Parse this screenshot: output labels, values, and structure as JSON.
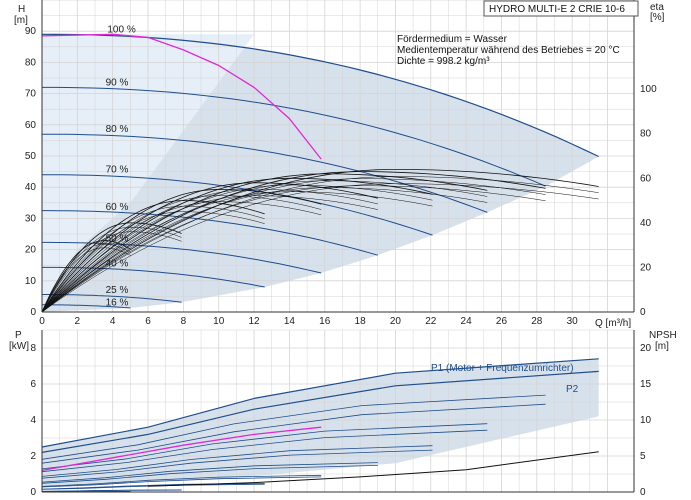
{
  "chart_data": [
    {
      "type": "line",
      "panel": "head",
      "title": "HYDRO MULTI-E 2 CRIE 10-6",
      "notes": [
        "Fördermedium = Wasser",
        "Medientemperatur während des Betriebes = 20 °C",
        "Dichte = 998.2 kg/m³"
      ],
      "xlabel": "Q [m³/h]",
      "ylabel_left": "H",
      "ylabel_left_unit": "[m]",
      "ylabel_right": "eta",
      "ylabel_right_unit": "[%]",
      "xlim": [
        0,
        33.5
      ],
      "ylim_left": [
        0,
        100
      ],
      "ylim_right": [
        0,
        140
      ],
      "x_ticks": [
        0,
        2,
        4,
        6,
        8,
        10,
        12,
        14,
        16,
        18,
        20,
        22,
        24,
        26,
        28,
        30
      ],
      "y_ticks_left": [
        0,
        10,
        20,
        30,
        40,
        50,
        60,
        70,
        80,
        90
      ],
      "y_ticks_right": [
        0,
        20,
        40,
        60,
        80,
        100
      ],
      "grid": true,
      "curve_labels": [
        {
          "text": "100 %",
          "x": 3.7,
          "y": 89
        },
        {
          "text": "90 %",
          "x": 3.6,
          "y": 72
        },
        {
          "text": "80 %",
          "x": 3.6,
          "y": 57
        },
        {
          "text": "70 %",
          "x": 3.6,
          "y": 44
        },
        {
          "text": "60 %",
          "x": 3.6,
          "y": 32
        },
        {
          "text": "50 %",
          "x": 3.6,
          "y": 22
        },
        {
          "text": "40 %",
          "x": 3.6,
          "y": 14
        },
        {
          "text": "25 %",
          "x": 3.6,
          "y": 5.5
        },
        {
          "text": "16 %",
          "x": 3.6,
          "y": 1.5
        }
      ],
      "pump_curves": [
        {
          "speed": "100 %",
          "shutoff_head": 89,
          "q_max": 31.5
        },
        {
          "speed": "90 %",
          "shutoff_head": 72,
          "q_max": 28.5
        },
        {
          "speed": "80 %",
          "shutoff_head": 57,
          "q_max": 25.2
        },
        {
          "speed": "70 %",
          "shutoff_head": 44,
          "q_max": 22.1
        },
        {
          "speed": "60 %",
          "shutoff_head": 32.5,
          "q_max": 19
        },
        {
          "speed": "50 %",
          "shutoff_head": 22.3,
          "q_max": 15.8
        },
        {
          "speed": "40 %",
          "shutoff_head": 14.3,
          "q_max": 12.6
        },
        {
          "speed": "25 %",
          "shutoff_head": 5.6,
          "q_max": 7.9
        },
        {
          "speed": "16 %",
          "shutoff_head": 2.3,
          "q_max": 5
        }
      ],
      "eta_curves": [
        {
          "peak": 64,
          "peak_q": 20,
          "q_max": 31.5
        },
        {
          "peak": 63,
          "peak_q": 18,
          "q_max": 28.5
        },
        {
          "peak": 62,
          "peak_q": 16,
          "q_max": 25.2
        },
        {
          "peak": 60,
          "peak_q": 14,
          "q_max": 22.1
        },
        {
          "peak": 58,
          "peak_q": 12,
          "q_max": 19
        },
        {
          "peak": 55,
          "peak_q": 10,
          "q_max": 15.8
        },
        {
          "peak": 50,
          "peak_q": 8,
          "q_max": 12.6
        },
        {
          "peak": 40,
          "peak_q": 5,
          "q_max": 7.9
        },
        {
          "peak": 32,
          "peak_q": 3.5,
          "q_max": 5
        }
      ],
      "magenta_curve": [
        [
          0,
          88.5
        ],
        [
          4,
          89
        ],
        [
          6,
          88
        ],
        [
          8,
          84
        ],
        [
          10,
          79
        ],
        [
          12,
          72
        ],
        [
          14,
          62
        ],
        [
          15.8,
          49
        ]
      ],
      "colors": {
        "pump": "#1f4e8c",
        "eta": "#111111",
        "highlight": "#e02ad3",
        "band": "#c9d7e6"
      }
    },
    {
      "type": "line",
      "panel": "power_npsh",
      "ylabel_left": "P",
      "ylabel_left_unit": "[kW]",
      "ylabel_right": "NPSH",
      "ylabel_right_unit": "[m]",
      "xlim": [
        0,
        33.5
      ],
      "ylim_left": [
        0,
        9
      ],
      "ylim_right": [
        0,
        22.5
      ],
      "y_ticks_left": [
        0,
        2,
        4,
        6,
        8
      ],
      "y_ticks_right": [
        0,
        5,
        10,
        15,
        20
      ],
      "grid": true,
      "series": [
        {
          "name": "P1 (Motor + Frequenzumrichter)",
          "values": [
            [
              0,
              2.5
            ],
            [
              6,
              3.6
            ],
            [
              12,
              5.2
            ],
            [
              20,
              6.6
            ],
            [
              31.5,
              7.4
            ]
          ]
        },
        {
          "name": "P2",
          "values": [
            [
              0,
              2.2
            ],
            [
              6,
              3.2
            ],
            [
              12,
              4.6
            ],
            [
              20,
              5.9
            ],
            [
              31.5,
              6.7
            ]
          ]
        }
      ],
      "npsh_curve": [
        [
          6,
          0.8
        ],
        [
          12,
          1.3
        ],
        [
          18,
          2.1
        ],
        [
          24,
          3.1
        ],
        [
          31.5,
          5.6
        ]
      ],
      "magenta_curve": [
        [
          0,
          1.2
        ],
        [
          4,
          1.9
        ],
        [
          8,
          2.6
        ],
        [
          12,
          3.2
        ],
        [
          15.8,
          3.6
        ]
      ],
      "colors": {
        "power": "#1f4e8c",
        "npsh": "#111111",
        "highlight": "#e02ad3",
        "band": "#c9d7e6"
      }
    }
  ]
}
